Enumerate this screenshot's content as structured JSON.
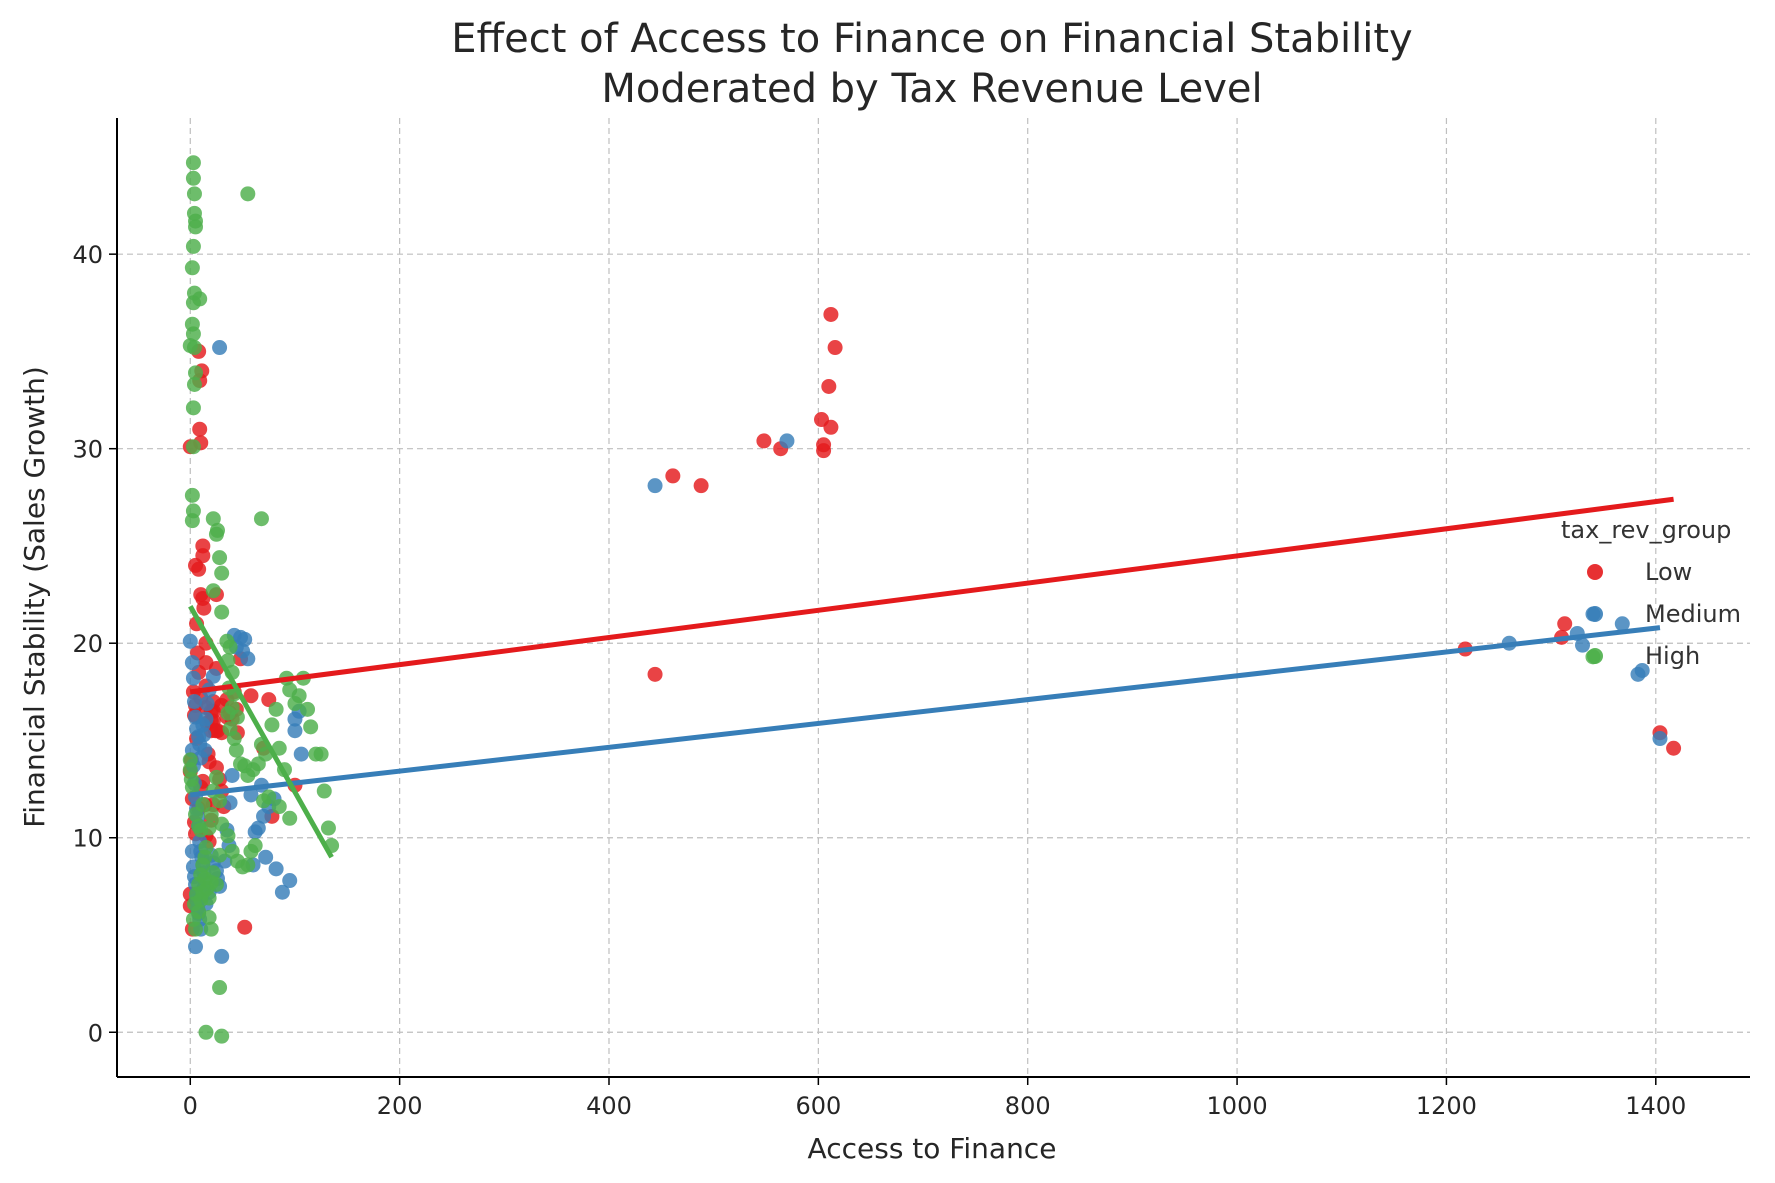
{
  "chart_data": {
    "type": "scatter",
    "title": [
      "Effect of Access to Finance on Financial Stability",
      "Moderated by Tax Revenue Level"
    ],
    "xlabel": "Access to Finance",
    "ylabel": "Financial Stability (Sales Growth)",
    "xlim": [
      -70,
      1490
    ],
    "ylim": [
      -2.3,
      47.0
    ],
    "x_ticks": [
      0,
      200,
      400,
      600,
      800,
      1000,
      1200,
      1400
    ],
    "y_ticks": [
      0,
      10,
      20,
      30,
      40
    ],
    "grid": true,
    "legend": {
      "title": "tax_rev_group",
      "placement": "right"
    },
    "series": [
      {
        "name": "Low",
        "color": "#e41a1c",
        "points": [
          [
            0,
            30.1
          ],
          [
            3,
            17.5
          ],
          [
            5,
            16.8
          ],
          [
            5,
            24
          ],
          [
            6,
            21
          ],
          [
            7,
            19.5
          ],
          [
            8,
            18.5
          ],
          [
            8,
            35
          ],
          [
            9,
            33.5
          ],
          [
            8,
            23.8
          ],
          [
            10,
            22.5
          ],
          [
            10,
            17.2
          ],
          [
            12,
            24.5
          ],
          [
            12,
            25
          ],
          [
            9,
            31
          ],
          [
            10,
            30.3
          ],
          [
            11,
            34
          ],
          [
            12,
            22.3
          ],
          [
            13,
            21.8
          ],
          [
            15,
            20
          ],
          [
            15,
            19
          ],
          [
            15,
            17.8
          ],
          [
            15,
            16.7
          ],
          [
            16,
            15.9
          ],
          [
            17,
            14.3
          ],
          [
            18,
            13.9
          ],
          [
            20,
            16.5
          ],
          [
            20,
            16
          ],
          [
            20,
            15.5
          ],
          [
            22,
            17
          ],
          [
            22,
            16.5
          ],
          [
            22,
            16
          ],
          [
            24,
            15.5
          ],
          [
            25,
            18.7
          ],
          [
            25,
            22.5
          ],
          [
            26,
            15.5
          ],
          [
            30,
            16.8
          ],
          [
            30,
            15.4
          ],
          [
            32,
            11.6
          ],
          [
            35,
            16.2
          ],
          [
            35,
            17.1
          ],
          [
            38,
            16.4
          ],
          [
            40,
            16.1
          ],
          [
            42,
            17.5
          ],
          [
            44,
            16.6
          ],
          [
            45,
            15.4
          ],
          [
            48,
            19.2
          ],
          [
            52,
            5.4
          ],
          [
            58,
            17.3
          ],
          [
            70,
            14.6
          ],
          [
            75,
            17.1
          ],
          [
            78,
            11.1
          ],
          [
            100,
            12.7
          ],
          [
            0,
            7.1
          ],
          [
            0,
            6.5
          ],
          [
            2,
            5.3
          ],
          [
            1,
            14
          ],
          [
            2,
            12
          ],
          [
            0,
            13.4
          ],
          [
            4,
            10.8
          ],
          [
            5,
            10.2
          ],
          [
            8,
            11.5
          ],
          [
            10,
            12.6
          ],
          [
            12,
            12.9
          ],
          [
            14,
            11.7
          ],
          [
            15,
            10.1
          ],
          [
            18,
            9.8
          ],
          [
            20,
            10.9
          ],
          [
            22,
            11.7
          ],
          [
            25,
            13.6
          ],
          [
            28,
            13
          ],
          [
            30,
            12.4
          ],
          [
            6,
            15.1
          ],
          [
            4,
            16.3
          ],
          [
            444,
            18.4
          ],
          [
            461,
            28.6
          ],
          [
            488,
            28.1
          ],
          [
            548,
            30.4
          ],
          [
            564,
            30
          ],
          [
            603,
            31.5
          ],
          [
            605,
            30.2
          ],
          [
            605,
            29.9
          ],
          [
            610,
            33.2
          ],
          [
            612,
            31.1
          ],
          [
            612,
            36.9
          ],
          [
            616,
            35.2
          ],
          [
            1218,
            19.7
          ],
          [
            1310,
            20.3
          ],
          [
            1313,
            21
          ],
          [
            1404,
            15.4
          ],
          [
            1417,
            14.6
          ]
        ],
        "fit": [
          [
            0,
            17.5
          ],
          [
            1417,
            27.4
          ]
        ]
      },
      {
        "name": "Medium",
        "color": "#377eb8",
        "points": [
          [
            0,
            20.1
          ],
          [
            2,
            19
          ],
          [
            3,
            18.2
          ],
          [
            4,
            17
          ],
          [
            5,
            16.2
          ],
          [
            6,
            15.6
          ],
          [
            8,
            15.2
          ],
          [
            9,
            14.8
          ],
          [
            10,
            14.1
          ],
          [
            12,
            15.8
          ],
          [
            13,
            15.3
          ],
          [
            14,
            14.5
          ],
          [
            15,
            16.1
          ],
          [
            2,
            14.5
          ],
          [
            3,
            13.7
          ],
          [
            4,
            12.8
          ],
          [
            5,
            12.1
          ],
          [
            6,
            11.5
          ],
          [
            7,
            11.1
          ],
          [
            8,
            10.6
          ],
          [
            9,
            9.8
          ],
          [
            10,
            9.3
          ],
          [
            11,
            9
          ],
          [
            12,
            8.6
          ],
          [
            13,
            8.2
          ],
          [
            14,
            7.8
          ],
          [
            2,
            9.3
          ],
          [
            3,
            8.5
          ],
          [
            4,
            8
          ],
          [
            5,
            7.6
          ],
          [
            6,
            7.1
          ],
          [
            6,
            6.8
          ],
          [
            7,
            6.4
          ],
          [
            8,
            6.1
          ],
          [
            9,
            5.8
          ],
          [
            5,
            4.4
          ],
          [
            10,
            5.3
          ],
          [
            11,
            7
          ],
          [
            13,
            7.4
          ],
          [
            15,
            6.6
          ],
          [
            18,
            7.2
          ],
          [
            20,
            9.1
          ],
          [
            22,
            8.7
          ],
          [
            25,
            8.3
          ],
          [
            26,
            7.9
          ],
          [
            28,
            7.5
          ],
          [
            28,
            35.2
          ],
          [
            30,
            3.9
          ],
          [
            33,
            8.8
          ],
          [
            35,
            10.4
          ],
          [
            37,
            9.6
          ],
          [
            38,
            11.8
          ],
          [
            40,
            13.2
          ],
          [
            42,
            20.4
          ],
          [
            44,
            19.8
          ],
          [
            48,
            20.3
          ],
          [
            50,
            19.6
          ],
          [
            52,
            20.2
          ],
          [
            55,
            19.2
          ],
          [
            58,
            12.2
          ],
          [
            60,
            8.6
          ],
          [
            62,
            10.3
          ],
          [
            65,
            10.5
          ],
          [
            68,
            12.7
          ],
          [
            70,
            11.1
          ],
          [
            72,
            9
          ],
          [
            75,
            11.6
          ],
          [
            80,
            12
          ],
          [
            82,
            8.4
          ],
          [
            88,
            7.2
          ],
          [
            95,
            7.8
          ],
          [
            100,
            15.5
          ],
          [
            100,
            16.1
          ],
          [
            104,
            16.5
          ],
          [
            106,
            14.3
          ],
          [
            22,
            18.3
          ],
          [
            18,
            17.6
          ],
          [
            16,
            16.9
          ],
          [
            444,
            28.1
          ],
          [
            570,
            30.4
          ],
          [
            1260,
            20
          ],
          [
            1325,
            20.5
          ],
          [
            1330,
            19.9
          ],
          [
            1340,
            21.5
          ],
          [
            1368,
            21
          ],
          [
            1383,
            18.4
          ],
          [
            1387,
            18.6
          ],
          [
            1404,
            15.1
          ]
        ],
        "fit": [
          [
            0,
            12.2
          ],
          [
            1404,
            20.8
          ]
        ]
      },
      {
        "name": "High",
        "color": "#4daf4a",
        "points": [
          [
            3,
            44.7
          ],
          [
            3,
            43.9
          ],
          [
            4,
            43.1
          ],
          [
            4,
            42.1
          ],
          [
            5,
            41.7
          ],
          [
            5,
            41.4
          ],
          [
            3,
            40.4
          ],
          [
            2,
            39.3
          ],
          [
            4,
            38
          ],
          [
            3,
            37.5
          ],
          [
            9,
            37.7
          ],
          [
            2,
            36.4
          ],
          [
            3,
            35.9
          ],
          [
            0,
            35.3
          ],
          [
            4,
            35.2
          ],
          [
            5,
            33.9
          ],
          [
            4,
            33.3
          ],
          [
            3,
            32.1
          ],
          [
            3,
            30.1
          ],
          [
            2,
            27.6
          ],
          [
            3,
            26.8
          ],
          [
            2,
            26.3
          ],
          [
            55,
            43.1
          ],
          [
            22,
            26.4
          ],
          [
            25,
            25.6
          ],
          [
            26,
            25.8
          ],
          [
            28,
            24.4
          ],
          [
            30,
            23.6
          ],
          [
            68,
            26.4
          ],
          [
            22,
            22.7
          ],
          [
            30,
            21.6
          ],
          [
            35,
            20.1
          ],
          [
            38,
            19.8
          ],
          [
            36,
            19.1
          ],
          [
            40,
            18.5
          ],
          [
            37,
            17.7
          ],
          [
            42,
            17.4
          ],
          [
            40,
            16.7
          ],
          [
            45,
            16.2
          ],
          [
            36,
            16.4
          ],
          [
            38,
            15.6
          ],
          [
            42,
            15.1
          ],
          [
            44,
            14.5
          ],
          [
            48,
            13.8
          ],
          [
            52,
            13.7
          ],
          [
            55,
            13.2
          ],
          [
            60,
            13.5
          ],
          [
            65,
            13.8
          ],
          [
            68,
            14.8
          ],
          [
            72,
            14.3
          ],
          [
            78,
            15.8
          ],
          [
            82,
            16.6
          ],
          [
            85,
            14.6
          ],
          [
            90,
            13.5
          ],
          [
            92,
            18.2
          ],
          [
            95,
            17.6
          ],
          [
            100,
            16.9
          ],
          [
            104,
            17.3
          ],
          [
            108,
            18.2
          ],
          [
            112,
            16.6
          ],
          [
            115,
            15.7
          ],
          [
            120,
            14.3
          ],
          [
            125,
            14.3
          ],
          [
            128,
            12.4
          ],
          [
            132,
            10.5
          ],
          [
            135,
            9.6
          ],
          [
            95,
            11
          ],
          [
            85,
            11.6
          ],
          [
            75,
            12.1
          ],
          [
            70,
            11.9
          ],
          [
            62,
            9.6
          ],
          [
            58,
            9.3
          ],
          [
            55,
            8.6
          ],
          [
            50,
            8.5
          ],
          [
            45,
            8.8
          ],
          [
            40,
            9.3
          ],
          [
            36,
            10.1
          ],
          [
            30,
            10.7
          ],
          [
            28,
            11.9
          ],
          [
            25,
            13.1
          ],
          [
            22,
            12.4
          ],
          [
            20,
            11.2
          ],
          [
            18,
            10.5
          ],
          [
            15,
            9.5
          ],
          [
            14,
            9
          ],
          [
            12,
            8.6
          ],
          [
            10,
            8.1
          ],
          [
            8,
            7.6
          ],
          [
            6,
            7.1
          ],
          [
            4,
            6.6
          ],
          [
            3,
            5.8
          ],
          [
            5,
            5.3
          ],
          [
            8,
            6.2
          ],
          [
            10,
            6.8
          ],
          [
            12,
            7.2
          ],
          [
            14,
            7.9
          ],
          [
            16,
            7.4
          ],
          [
            18,
            6.9
          ],
          [
            20,
            7.7
          ],
          [
            22,
            8.2
          ],
          [
            25,
            7.6
          ],
          [
            28,
            9.1
          ],
          [
            18,
            5.9
          ],
          [
            20,
            5.3
          ],
          [
            28,
            2.3
          ],
          [
            15,
            0
          ],
          [
            30,
            -0.2
          ],
          [
            0,
            14
          ],
          [
            0,
            13.5
          ],
          [
            1,
            13
          ],
          [
            2,
            12.6
          ],
          [
            5,
            11.2
          ],
          [
            8,
            10.6
          ],
          [
            10,
            10.4
          ],
          [
            12,
            11.7
          ],
          [
            1340,
            19.3
          ]
        ],
        "fit": [
          [
            0,
            21.9
          ],
          [
            135,
            9
          ]
        ]
      }
    ]
  }
}
